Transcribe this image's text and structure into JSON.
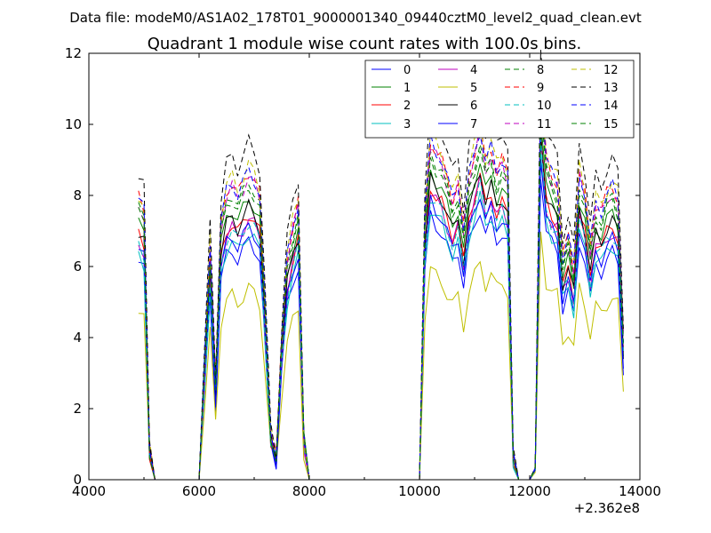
{
  "figure": {
    "suptitle": "Data file: modeM0/AS1A02_178T01_9000001340_09440cztM0_level2_quad_clean.evt"
  },
  "chart_data": {
    "type": "line",
    "title": "Quadrant 1 module wise count rates with 100.0s bins.",
    "xlabel": "",
    "ylabel": "",
    "xlim": [
      4000,
      14000
    ],
    "ylim": [
      0,
      12
    ],
    "x_offset_label": "+2.362e8",
    "xticks": [
      4000,
      6000,
      8000,
      10000,
      12000,
      14000
    ],
    "xtick_labels": [
      "4000",
      "6000",
      "8000",
      "10000",
      "12000",
      "14000"
    ],
    "yticks": [
      0,
      2,
      4,
      6,
      8,
      10,
      12
    ],
    "ytick_labels": [
      "0",
      "2",
      "4",
      "6",
      "8",
      "10",
      "12"
    ],
    "grid": false,
    "legend_position": "top-right",
    "x": [
      4900,
      5000,
      5100,
      5200,
      5300,
      5400,
      5500,
      5600,
      5700,
      5800,
      5900,
      6000,
      6100,
      6200,
      6300,
      6400,
      6500,
      6600,
      6700,
      6800,
      6900,
      7000,
      7100,
      7200,
      7300,
      7400,
      7500,
      7600,
      7700,
      7800,
      7900,
      8000,
      8100,
      8200,
      8300,
      8400,
      8500,
      8600,
      8700,
      8800,
      8900,
      9000,
      9100,
      9200,
      9300,
      9400,
      9500,
      9600,
      9700,
      9800,
      9900,
      10000,
      10100,
      10200,
      10300,
      10400,
      10500,
      10600,
      10700,
      10800,
      10900,
      11000,
      11100,
      11200,
      11300,
      11400,
      11500,
      11600,
      11700,
      11800,
      11900,
      12000,
      12100,
      12200,
      12300,
      12400,
      12500,
      12600,
      12700,
      12800,
      12900,
      13000,
      13100,
      13200,
      13300,
      13400,
      13500,
      13600,
      13700
    ],
    "base_profile": [
      7.2,
      6.9,
      0.8,
      0,
      0,
      0,
      0,
      0,
      0,
      0,
      0,
      0,
      3.0,
      6.0,
      2.5,
      6.6,
      7.4,
      7.6,
      7.3,
      7.6,
      7.9,
      7.7,
      7.3,
      4.4,
      1.2,
      0.6,
      3.6,
      5.7,
      6.5,
      7.1,
      1.1,
      0,
      0,
      0,
      0,
      0,
      0,
      0,
      0,
      0,
      0,
      0,
      0,
      0,
      0,
      0,
      0,
      0,
      0,
      0,
      0,
      0,
      6.9,
      8.7,
      8.4,
      8.2,
      7.7,
      7.2,
      7.6,
      6.4,
      7.8,
      8.4,
      9.0,
      8.1,
      8.5,
      7.9,
      8.2,
      7.8,
      0.6,
      0,
      0,
      0,
      0.3,
      10.2,
      8.2,
      7.8,
      7.6,
      5.7,
      6.2,
      5.4,
      7.9,
      7.3,
      6.0,
      7.1,
      6.9,
      7.3,
      7.5,
      7.2,
      3.7
    ],
    "series": [
      {
        "name": "0",
        "color": "#0000ff",
        "dash": "solid",
        "scale": 0.85
      },
      {
        "name": "1",
        "color": "#008000",
        "dash": "solid",
        "scale": 1.0
      },
      {
        "name": "2",
        "color": "#ff0000",
        "dash": "solid",
        "scale": 0.95
      },
      {
        "name": "3",
        "color": "#00bfbf",
        "dash": "solid",
        "scale": 0.88
      },
      {
        "name": "4",
        "color": "#bf00bf",
        "dash": "solid",
        "scale": 0.93
      },
      {
        "name": "5",
        "color": "#bfbf00",
        "dash": "solid",
        "scale": 0.68
      },
      {
        "name": "6",
        "color": "#000000",
        "dash": "solid",
        "scale": 0.97
      },
      {
        "name": "7",
        "color": "#0000ff",
        "dash": "solid",
        "scale": 0.9
      },
      {
        "name": "8",
        "color": "#008000",
        "dash": "dashed",
        "scale": 1.06
      },
      {
        "name": "9",
        "color": "#ff0000",
        "dash": "dashed",
        "scale": 1.1
      },
      {
        "name": "10",
        "color": "#00bfbf",
        "dash": "dashed",
        "scale": 0.92
      },
      {
        "name": "11",
        "color": "#bf00bf",
        "dash": "dashed",
        "scale": 1.08
      },
      {
        "name": "12",
        "color": "#bfbf00",
        "dash": "dashed",
        "scale": 1.12
      },
      {
        "name": "13",
        "color": "#000000",
        "dash": "dashed",
        "scale": 1.2
      },
      {
        "name": "14",
        "color": "#0000ff",
        "dash": "dashed",
        "scale": 1.1
      },
      {
        "name": "15",
        "color": "#008000",
        "dash": "dashed",
        "scale": 1.04
      }
    ]
  }
}
